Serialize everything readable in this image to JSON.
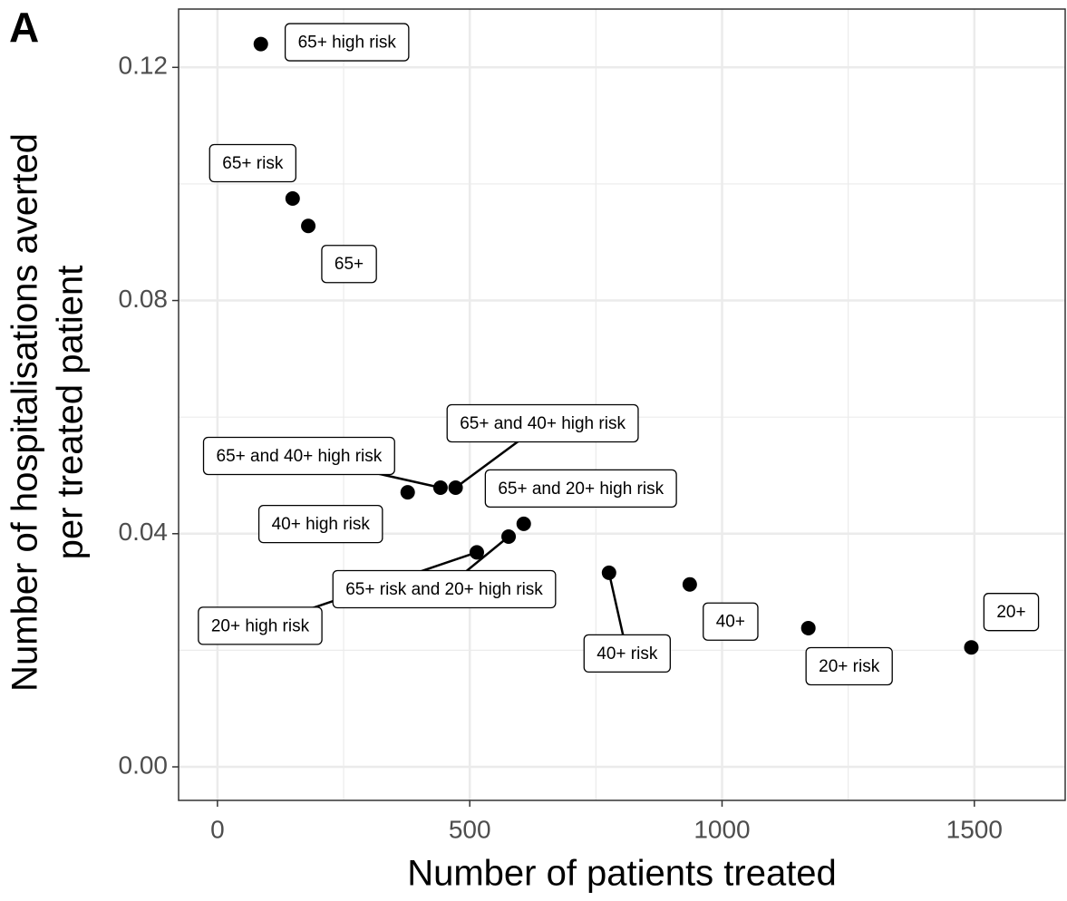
{
  "panel_label": "A",
  "chart_data": {
    "type": "scatter",
    "xlabel": "Number of patients treated",
    "ylabel": [
      "Number of hospitalisations averted",
      "per treated patient"
    ],
    "point_labels": [
      "65+ high risk",
      "65+ risk",
      "65+",
      "40+ high risk",
      "65+ and 40+ high risk",
      "65+ and 40+ high risk",
      "65+ and 20+ high risk",
      "65+ risk and 20+ high risk",
      "20+ high risk",
      "40+ risk",
      "40+",
      "20+ risk",
      "20+"
    ],
    "x": [
      86,
      149,
      180,
      377,
      442,
      472,
      607,
      577,
      514,
      776,
      936,
      1171,
      1494
    ],
    "values": [
      0.124,
      0.0975,
      0.0928,
      0.0471,
      0.0479,
      0.0479,
      0.0417,
      0.0395,
      0.0368,
      0.0333,
      0.0313,
      0.0238,
      0.0205
    ],
    "color": "#000000",
    "xlim": [
      -77,
      1680
    ],
    "ylim": [
      -0.00575,
      0.13
    ],
    "xticks": [
      0,
      500,
      1000,
      1500
    ],
    "yticks": [
      {
        "value": 0,
        "label": "0.00"
      },
      0.04,
      0.08,
      0.12
    ],
    "grid": true
  }
}
